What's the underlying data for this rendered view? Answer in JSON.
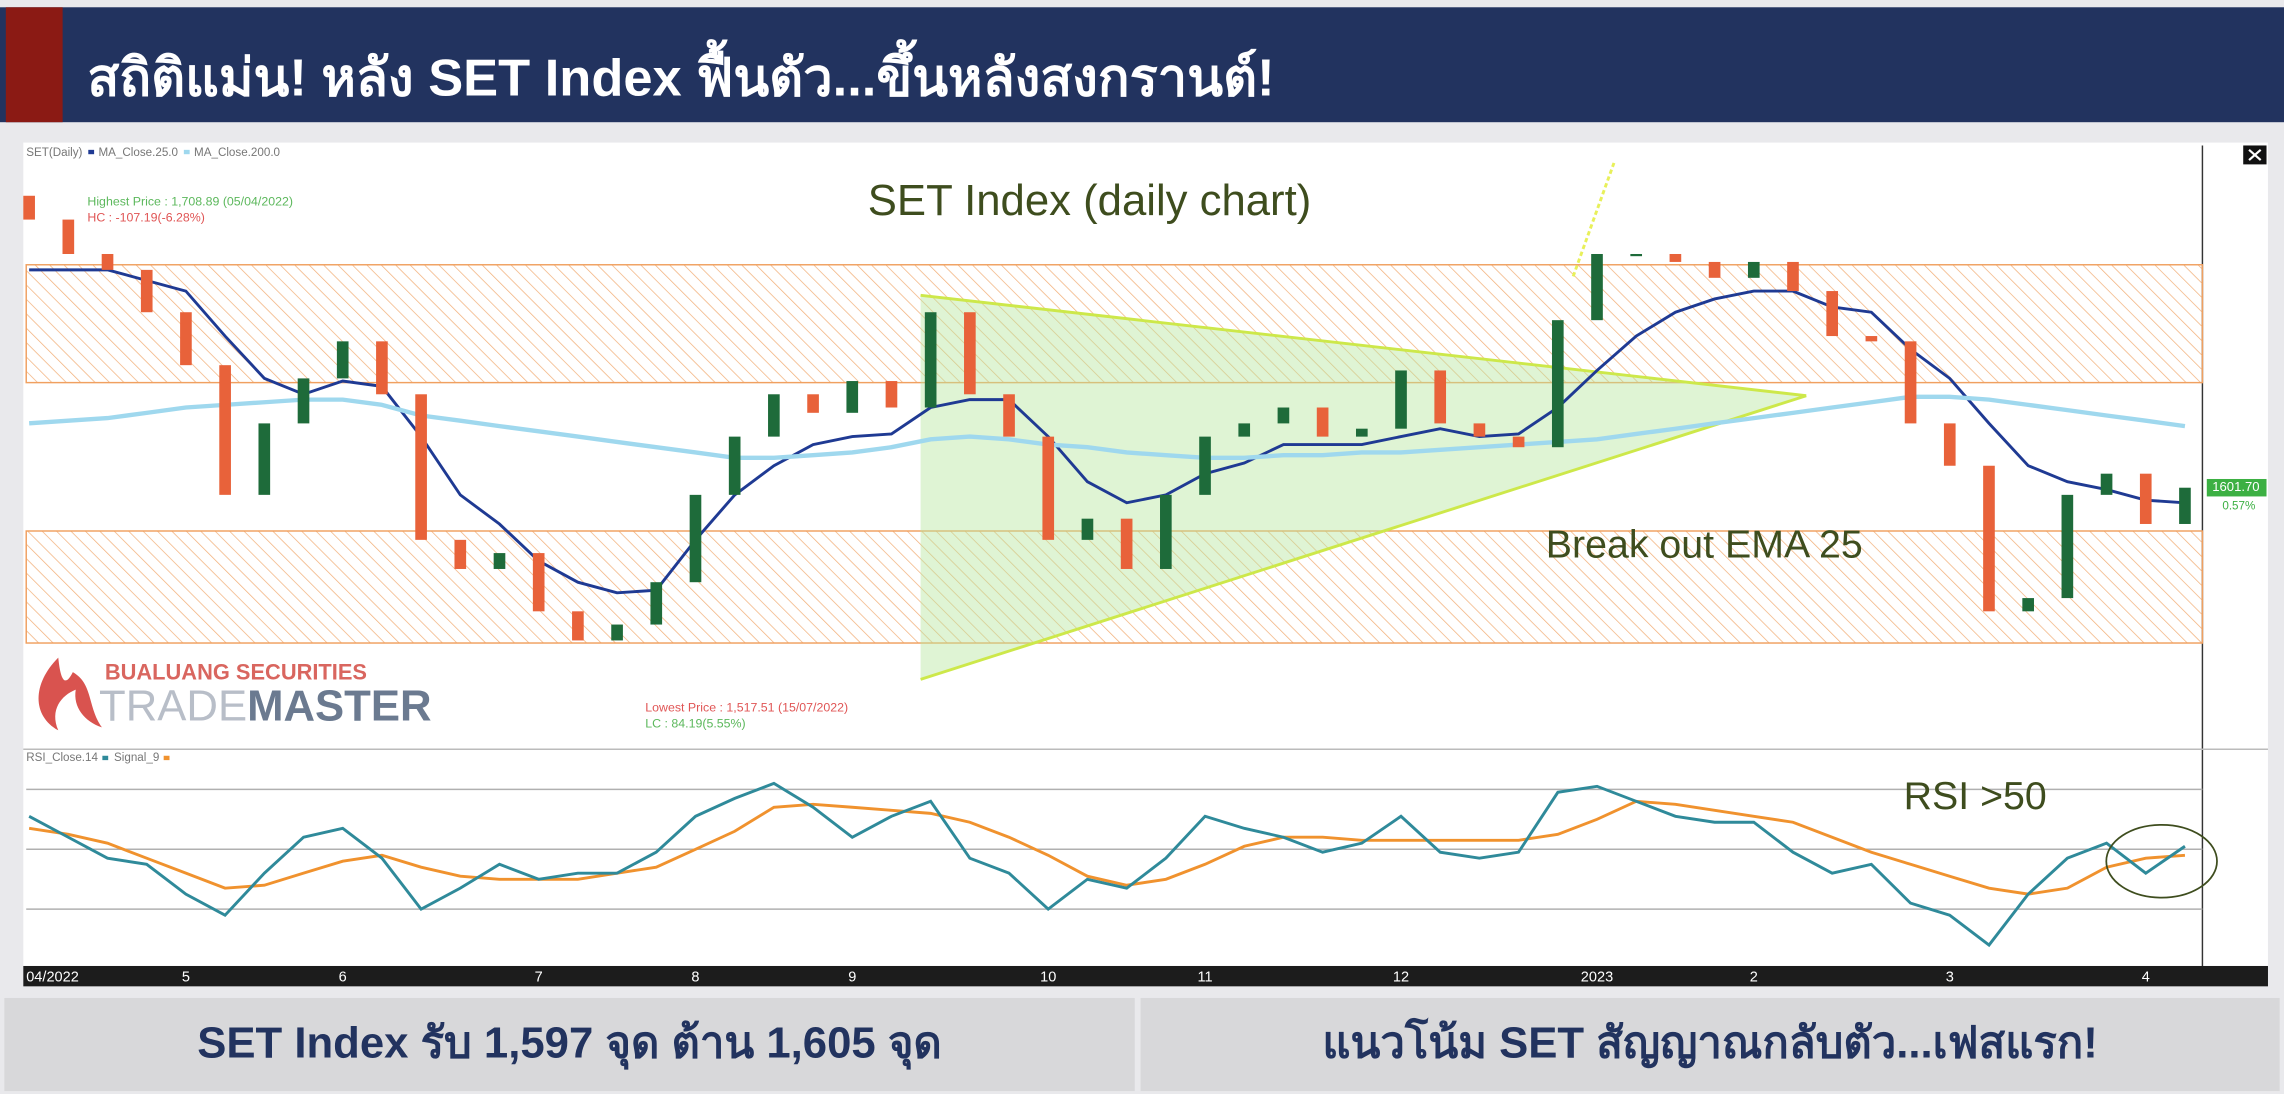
{
  "header": {
    "title": "สถิติแม่น! หลัง SET Index ฟื้นตัว...ขึ้นหลังสงกรานต์!"
  },
  "logo": {
    "line1": "BUALUANG SECURITIES",
    "line2a": "TRADE",
    "line2b": "MASTER"
  },
  "chart_data": [
    {
      "type": "candlestick",
      "title": "SET Index (daily chart)",
      "legend": "SET(Daily)",
      "categories": [
        "04/2022",
        null,
        null,
        null,
        "5",
        null,
        null,
        null,
        "6",
        null,
        null,
        null,
        null,
        "7",
        null,
        null,
        null,
        "8",
        null,
        null,
        null,
        "9",
        null,
        null,
        null,
        null,
        "10",
        null,
        null,
        null,
        "11",
        null,
        null,
        null,
        null,
        "12",
        null,
        null,
        null,
        null,
        "2023",
        null,
        null,
        null,
        "2",
        null,
        null,
        null,
        null,
        "3",
        null,
        null,
        null,
        null,
        "4",
        null
      ],
      "open": [
        1712,
        1703,
        1690,
        1684,
        1668,
        1648,
        1599,
        1626,
        1643,
        1657,
        1637,
        1582,
        1571,
        1577,
        1555,
        1544,
        1550,
        1566,
        1599,
        1621,
        1637,
        1630,
        1642,
        1632,
        1668,
        1637,
        1621,
        1582,
        1590,
        1571,
        1599,
        1621,
        1626,
        1632,
        1621,
        1624,
        1646,
        1626,
        1621,
        1617,
        1665,
        1690,
        1690,
        1687,
        1681,
        1687,
        1676,
        1659,
        1657,
        1626,
        1610,
        1555,
        1560,
        1599,
        1607,
        1588
      ],
      "close": [
        1703,
        1690,
        1684,
        1668,
        1648,
        1599,
        1626,
        1643,
        1657,
        1637,
        1582,
        1571,
        1577,
        1555,
        1544,
        1550,
        1566,
        1599,
        1621,
        1637,
        1630,
        1642,
        1632,
        1668,
        1637,
        1621,
        1582,
        1590,
        1571,
        1599,
        1621,
        1626,
        1632,
        1621,
        1624,
        1646,
        1626,
        1621,
        1617,
        1665,
        1690,
        1690,
        1687,
        1681,
        1687,
        1676,
        1659,
        1657,
        1626,
        1610,
        1555,
        1560,
        1599,
        1607,
        1588,
        1601.7
      ],
      "up_color": "#1e6b3a",
      "down_color": "#e8623a",
      "series": [
        {
          "name": "MA_Close.25.0",
          "color": "#1f3a93",
          "values": [
            1684,
            1684,
            1684,
            1680,
            1676,
            1659,
            1643,
            1637,
            1642,
            1640,
            1621,
            1599,
            1588,
            1574,
            1566,
            1562,
            1563,
            1582,
            1599,
            1610,
            1618,
            1621,
            1622,
            1632,
            1635,
            1635,
            1621,
            1604,
            1596,
            1599,
            1607,
            1611,
            1618,
            1618,
            1618,
            1621,
            1624,
            1621,
            1622,
            1632,
            1646,
            1659,
            1668,
            1673,
            1676,
            1676,
            1670,
            1668,
            1654,
            1643,
            1626,
            1610,
            1604,
            1601,
            1597,
            1596
          ]
        },
        {
          "name": "MA_Close.200.0",
          "color": "#9fd8ee",
          "values": [
            1626,
            1627,
            1628,
            1630,
            1632,
            1633,
            1634,
            1635,
            1635,
            1633,
            1629,
            1627,
            1625,
            1623,
            1621,
            1619,
            1617,
            1615,
            1613,
            1613,
            1614,
            1615,
            1617,
            1620,
            1621,
            1620,
            1618,
            1617,
            1615,
            1614,
            1613,
            1613,
            1614,
            1614,
            1615,
            1615,
            1616,
            1617,
            1618,
            1619,
            1620,
            1622,
            1624,
            1626,
            1628,
            1630,
            1632,
            1634,
            1636,
            1636,
            1635,
            1633,
            1631,
            1629,
            1627,
            1625
          ]
        }
      ],
      "ylim": [
        1504,
        1731
      ],
      "annotations": [
        "Break out EMA 25",
        "Highest Price : 1,708.89 (05/04/2022)",
        "HC : -107.19(-6.28%)",
        "Lowest Price : 1,517.51 (15/07/2022)",
        "LC : 84.19(5.55%)"
      ],
      "last_price": "1601.70",
      "last_change": "0.57%"
    },
    {
      "type": "line",
      "annotation": "RSI >50",
      "series": [
        {
          "name": "RSI_Close.14",
          "color": "#2f8a9a",
          "values": [
            61,
            54,
            47,
            45,
            35,
            28,
            42,
            54,
            57,
            47,
            30,
            37,
            45,
            40,
            42,
            42,
            49,
            61,
            67,
            72,
            64,
            54,
            61,
            66,
            47,
            42,
            30,
            40,
            37,
            47,
            61,
            57,
            54,
            49,
            52,
            61,
            49,
            47,
            49,
            69,
            71,
            66,
            61,
            59,
            59,
            49,
            42,
            45,
            32,
            28,
            18,
            35,
            47,
            52,
            42,
            51
          ]
        },
        {
          "name": "Signal_9",
          "color": "#f0922e",
          "values": [
            57,
            55,
            52,
            47,
            42,
            37,
            38,
            42,
            46,
            48,
            44,
            41,
            40,
            40,
            40,
            42,
            44,
            50,
            56,
            64,
            65,
            64,
            63,
            62,
            59,
            54,
            48,
            41,
            38,
            40,
            45,
            51,
            54,
            54,
            53,
            53,
            53,
            53,
            53,
            55,
            60,
            66,
            65,
            63,
            61,
            59,
            54,
            49,
            45,
            41,
            37,
            35,
            37,
            44,
            47,
            48
          ]
        }
      ],
      "ylim": [
        12,
        80
      ],
      "yticks": [
        30,
        50,
        70
      ],
      "grid": true
    }
  ],
  "footer": {
    "left": "SET Index รับ 1,597 จุด ต้าน 1,605 จุด",
    "right": "แนวโน้ม SET สัญญาณกลับตัว...เฟสแรก!"
  }
}
